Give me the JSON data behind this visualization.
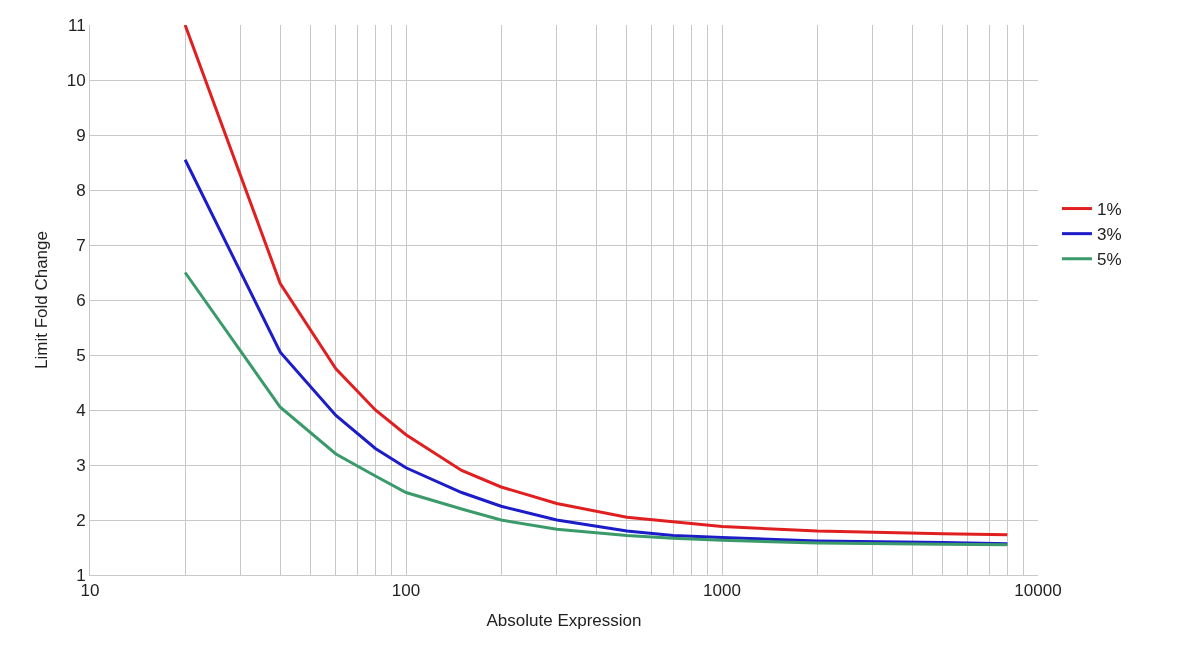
{
  "chart_data": {
    "type": "line",
    "xlabel": "Absolute Expression",
    "ylabel": "Limit Fold Change",
    "log": "x",
    "grid": true,
    "legend": "right",
    "marker": "none",
    "line_style": "solid",
    "xlim": [
      10,
      10000
    ],
    "ylim": [
      1,
      11
    ],
    "xticks": [
      10,
      {
        "value": 20,
        "label": null
      },
      {
        "value": 30,
        "label": null
      },
      {
        "value": 40,
        "label": null
      },
      {
        "value": 50,
        "label": null
      },
      {
        "value": 60,
        "label": null
      },
      {
        "value": 70,
        "label": null
      },
      {
        "value": 80,
        "label": null
      },
      {
        "value": 90,
        "label": null
      },
      100,
      {
        "value": 200,
        "label": null
      },
      {
        "value": 300,
        "label": null
      },
      {
        "value": 400,
        "label": null
      },
      {
        "value": 500,
        "label": null
      },
      {
        "value": 600,
        "label": null
      },
      {
        "value": 700,
        "label": null
      },
      {
        "value": 800,
        "label": null
      },
      {
        "value": 900,
        "label": null
      },
      1000,
      {
        "value": 2000,
        "label": null
      },
      {
        "value": 3000,
        "label": null
      },
      {
        "value": 4000,
        "label": null
      },
      {
        "value": 5000,
        "label": null
      },
      {
        "value": 6000,
        "label": null
      },
      {
        "value": 7000,
        "label": null
      },
      {
        "value": 8000,
        "label": null
      },
      {
        "value": 9000,
        "label": null
      },
      10000
    ],
    "yticks": [
      1,
      2,
      3,
      4,
      5,
      6,
      7,
      8,
      9,
      10,
      11
    ],
    "x": [
      20,
      40,
      60,
      80,
      100,
      150,
      200,
      300,
      500,
      700,
      1000,
      2000,
      5000,
      8000
    ],
    "series": [
      {
        "name": "1%",
        "color": "#e02020",
        "values": [
          11,
          6.3,
          4.75,
          4.0,
          3.55,
          2.9,
          2.6,
          2.3,
          2.05,
          1.97,
          1.88,
          1.8,
          1.75,
          1.73
        ]
      },
      {
        "name": "3%",
        "color": "#1c1cc8",
        "values": [
          8.55,
          5.05,
          3.9,
          3.3,
          2.95,
          2.5,
          2.25,
          2.0,
          1.8,
          1.72,
          1.68,
          1.62,
          1.59,
          1.57
        ]
      },
      {
        "name": "5%",
        "color": "#3a9a6a",
        "values": [
          6.5,
          4.05,
          3.2,
          2.8,
          2.5,
          2.2,
          2.0,
          1.83,
          1.72,
          1.67,
          1.63,
          1.58,
          1.56,
          1.55
        ]
      }
    ]
  }
}
